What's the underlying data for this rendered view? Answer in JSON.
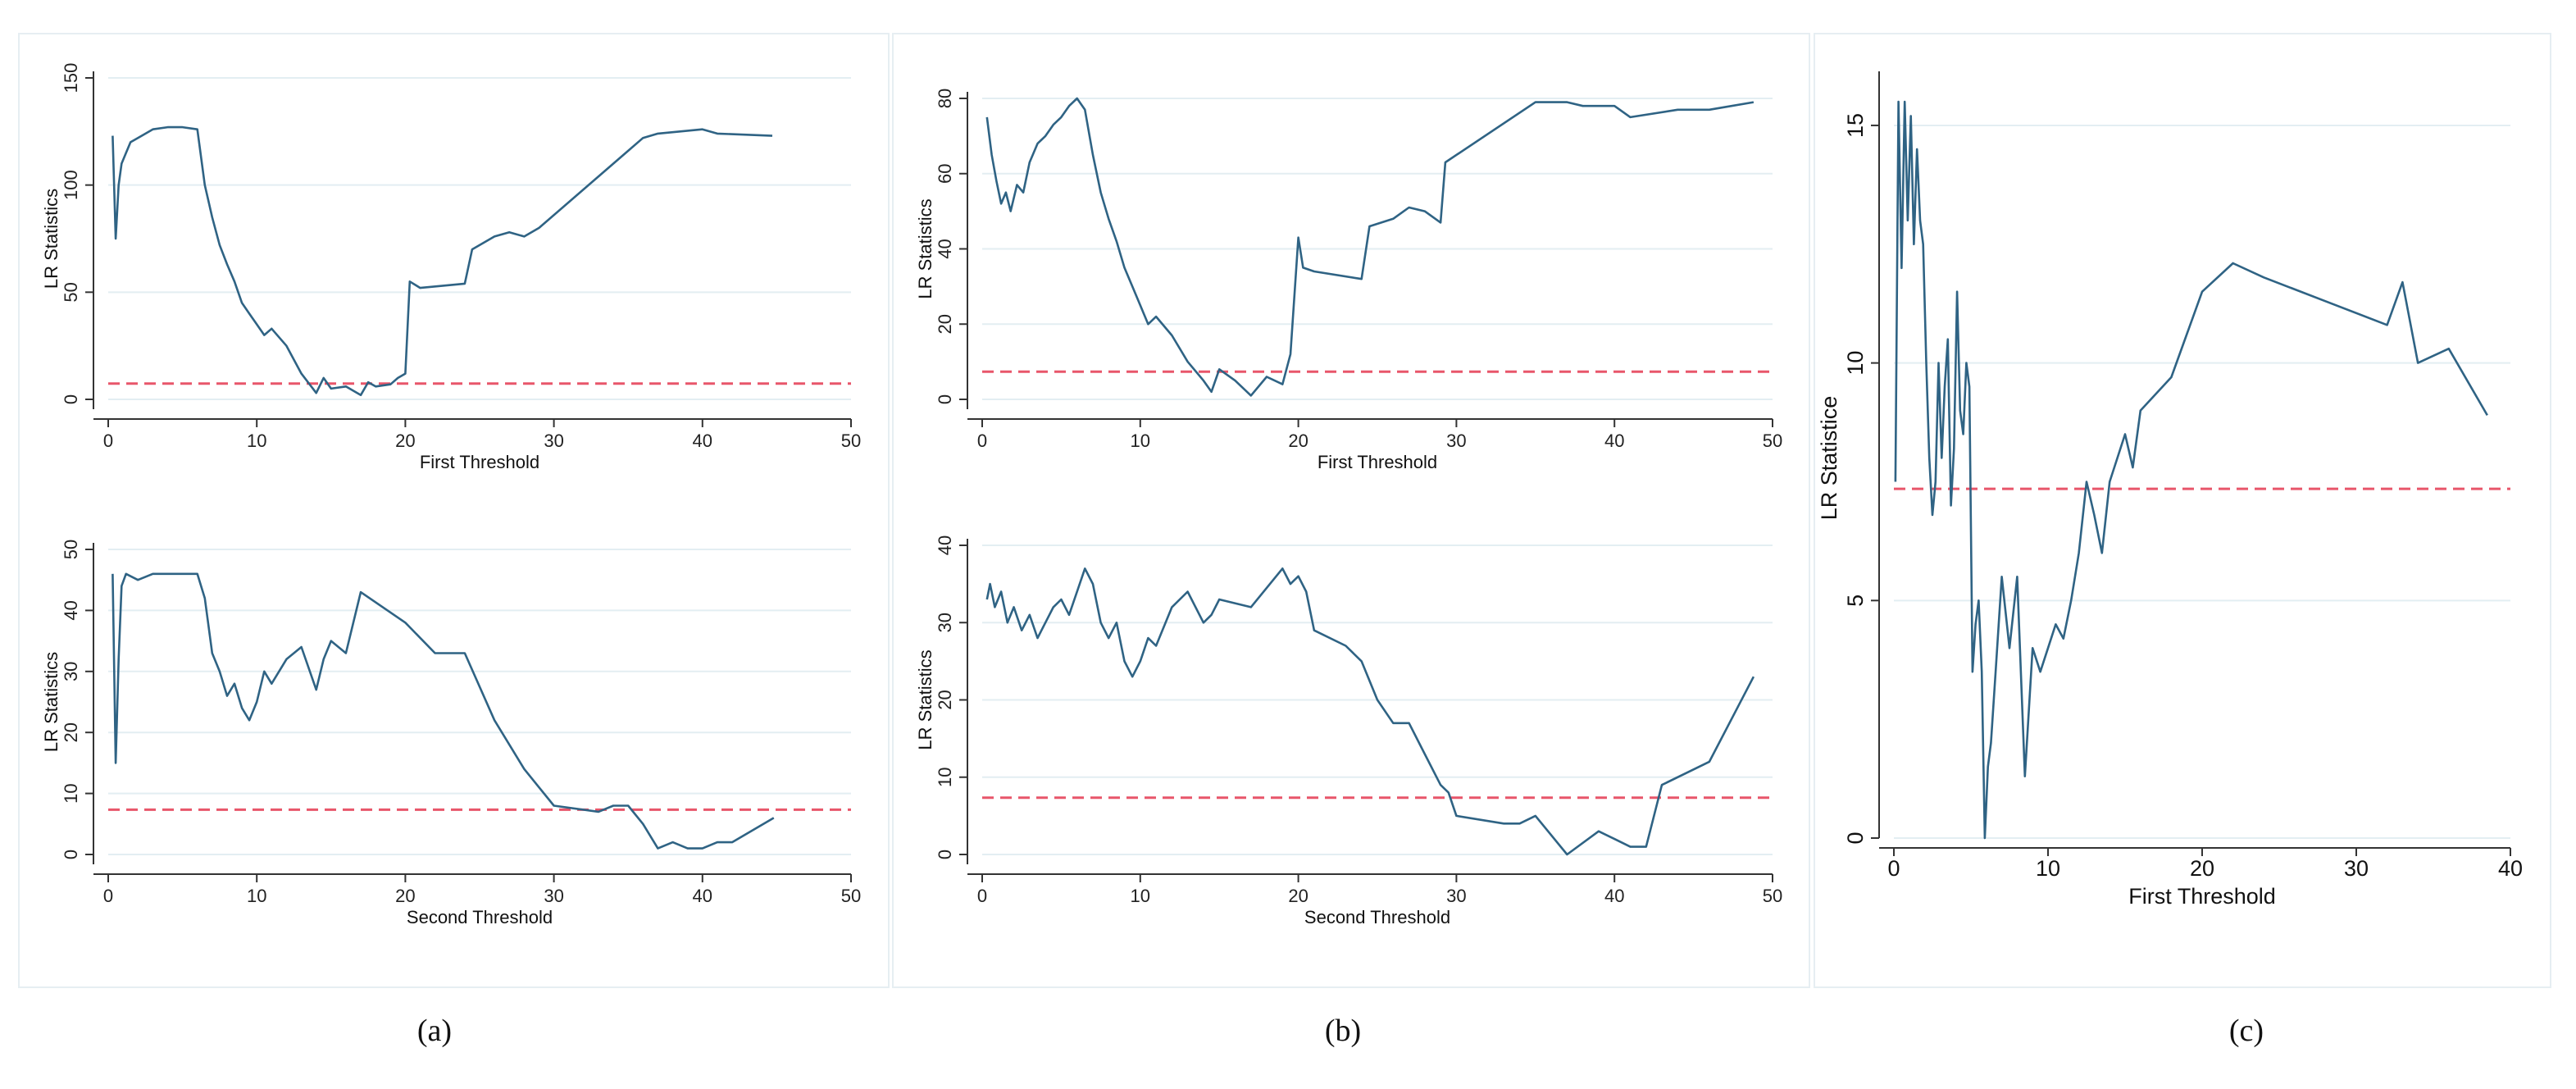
{
  "colors": {
    "line": "#2f6384",
    "refline": "#e8566a",
    "grid": "#e3eef2",
    "axis": "#333333"
  },
  "captions": [
    "(a)",
    "(b)",
    "(c)"
  ],
  "chart_data": [
    {
      "id": "a-top",
      "type": "line",
      "title": "",
      "xlabel": "First Threshold",
      "ylabel": "LR Statistics",
      "xlim": [
        0,
        50
      ],
      "ylim": [
        0,
        150
      ],
      "xticks": [
        0,
        10,
        20,
        30,
        40,
        50
      ],
      "yticks": [
        0,
        50,
        100,
        150
      ],
      "reference_line": 7.35,
      "x": [
        0.3,
        0.5,
        0.7,
        0.9,
        1.2,
        1.5,
        2,
        3,
        4,
        5,
        6,
        6.5,
        7,
        7.5,
        8,
        8.5,
        9,
        9.5,
        10,
        10.5,
        11,
        12,
        13,
        14,
        14.5,
        15,
        16,
        17,
        17.5,
        18,
        19,
        19.5,
        20,
        20.3,
        21,
        24,
        24.5,
        26,
        27,
        28,
        29,
        36,
        37,
        40,
        41,
        44.7
      ],
      "y": [
        123,
        75,
        100,
        110,
        115,
        120,
        122,
        126,
        127,
        127,
        126,
        100,
        85,
        72,
        63,
        55,
        45,
        40,
        35,
        30,
        33,
        25,
        12,
        3,
        10,
        5,
        6,
        2,
        8,
        6,
        7,
        10,
        12,
        55,
        52,
        54,
        70,
        76,
        78,
        76,
        80,
        122,
        124,
        126,
        124,
        123
      ]
    },
    {
      "id": "a-bottom",
      "type": "line",
      "title": "",
      "xlabel": "Second Threshold",
      "ylabel": "LR Statistics",
      "xlim": [
        0,
        50
      ],
      "ylim": [
        0,
        50
      ],
      "xticks": [
        0,
        10,
        20,
        30,
        40,
        50
      ],
      "yticks": [
        0,
        10,
        20,
        30,
        40,
        50
      ],
      "reference_line": 7.35,
      "x": [
        0.3,
        0.5,
        0.7,
        0.9,
        1.2,
        2,
        3,
        4,
        5,
        6,
        6.5,
        7,
        7.5,
        8,
        8.5,
        9,
        9.5,
        10,
        10.5,
        11,
        12,
        13,
        14,
        14.5,
        15,
        16,
        17,
        20,
        22,
        24,
        26,
        28,
        29,
        30,
        33,
        34,
        35,
        36,
        37,
        38,
        39,
        40,
        41,
        42,
        44.8
      ],
      "y": [
        46,
        15,
        32,
        44,
        46,
        45,
        46,
        46,
        46,
        46,
        42,
        33,
        30,
        26,
        28,
        24,
        22,
        25,
        30,
        28,
        32,
        34,
        27,
        32,
        35,
        33,
        43,
        38,
        33,
        33,
        22,
        14,
        11,
        8,
        7,
        8,
        8,
        5,
        1,
        2,
        1,
        1,
        2,
        2,
        6
      ]
    },
    {
      "id": "b-top",
      "type": "line",
      "title": "",
      "xlabel": "First Threshold",
      "ylabel": "LR Statistics",
      "xlim": [
        0,
        50
      ],
      "ylim": [
        0,
        80
      ],
      "xticks": [
        0,
        10,
        20,
        30,
        40,
        50
      ],
      "yticks": [
        0,
        20,
        40,
        60,
        80
      ],
      "reference_line": 7.35,
      "x": [
        0.3,
        0.6,
        0.9,
        1.2,
        1.5,
        1.8,
        2.2,
        2.6,
        3,
        3.5,
        4,
        4.5,
        5,
        5.5,
        6,
        6.5,
        7,
        7.5,
        8,
        8.5,
        9,
        9.5,
        10,
        10.5,
        11,
        12,
        13,
        14,
        14.5,
        15,
        16,
        16.5,
        17,
        18,
        19,
        19.5,
        20,
        20.3,
        21,
        24,
        24.5,
        26,
        27,
        28,
        29,
        29.3,
        35,
        37,
        38,
        40,
        41,
        44,
        46,
        48.8
      ],
      "y": [
        75,
        65,
        58,
        52,
        55,
        50,
        57,
        55,
        63,
        68,
        70,
        73,
        75,
        78,
        80,
        77,
        65,
        55,
        48,
        42,
        35,
        30,
        25,
        20,
        22,
        17,
        10,
        5,
        2,
        8,
        5,
        3,
        1,
        6,
        4,
        12,
        43,
        35,
        34,
        32,
        46,
        48,
        51,
        50,
        47,
        63,
        79,
        79,
        78,
        78,
        75,
        77,
        77,
        79
      ]
    },
    {
      "id": "b-bottom",
      "type": "line",
      "title": "",
      "xlabel": "Second Threshold",
      "ylabel": "LR Statistics",
      "xlim": [
        0,
        50
      ],
      "ylim": [
        0,
        40
      ],
      "xticks": [
        0,
        10,
        20,
        30,
        40,
        50
      ],
      "yticks": [
        0,
        10,
        20,
        30,
        40
      ],
      "reference_line": 7.35,
      "x": [
        0.3,
        0.5,
        0.8,
        1.2,
        1.6,
        2,
        2.5,
        3,
        3.5,
        4,
        4.5,
        5,
        5.5,
        6,
        6.5,
        7,
        7.5,
        8,
        8.5,
        9,
        9.5,
        10,
        10.5,
        11,
        12,
        13,
        14,
        14.5,
        15,
        17,
        19,
        19.5,
        20,
        20.5,
        21,
        23,
        24,
        25,
        26,
        27,
        28,
        29,
        29.5,
        30,
        33,
        34,
        35,
        37,
        39,
        40,
        41,
        42,
        43,
        46,
        48.8
      ],
      "y": [
        33,
        35,
        32,
        34,
        30,
        32,
        29,
        31,
        28,
        30,
        32,
        33,
        31,
        34,
        37,
        35,
        30,
        28,
        30,
        25,
        23,
        25,
        28,
        27,
        32,
        34,
        30,
        31,
        33,
        32,
        37,
        35,
        36,
        34,
        29,
        27,
        25,
        20,
        17,
        17,
        13,
        9,
        8,
        5,
        4,
        4,
        5,
        0,
        3,
        2,
        1,
        1,
        9,
        12,
        23
      ]
    },
    {
      "id": "c",
      "type": "line",
      "title": "",
      "xlabel": "First Threshold",
      "ylabel": "LR Statistice",
      "xlim": [
        0,
        40
      ],
      "ylim": [
        0,
        16
      ],
      "xticks": [
        0,
        10,
        20,
        30,
        40
      ],
      "yticks": [
        0,
        5,
        10,
        15
      ],
      "reference_line": 7.35,
      "x": [
        0.1,
        0.3,
        0.5,
        0.7,
        0.9,
        1.1,
        1.3,
        1.5,
        1.7,
        1.9,
        2.1,
        2.3,
        2.5,
        2.7,
        2.9,
        3.1,
        3.3,
        3.5,
        3.7,
        3.9,
        4.1,
        4.3,
        4.5,
        4.7,
        4.9,
        5.1,
        5.3,
        5.5,
        5.7,
        5.9,
        6.1,
        6.3,
        6.6,
        7,
        7.5,
        8,
        8.5,
        9,
        9.5,
        10,
        10.5,
        11,
        11.5,
        12,
        12.5,
        13,
        13.5,
        14,
        14.5,
        15,
        15.5,
        16,
        18,
        20,
        22,
        24,
        28,
        32,
        33,
        34,
        36,
        38.5
      ],
      "y": [
        7.5,
        15.5,
        12,
        15.5,
        13,
        15.2,
        12.5,
        14.5,
        13,
        12.5,
        10,
        8,
        6.8,
        7.5,
        10,
        8,
        9.5,
        10.5,
        7,
        8.2,
        11.5,
        9,
        8.5,
        10,
        9.5,
        3.5,
        4.5,
        5,
        3.5,
        0,
        1.5,
        2,
        3.5,
        5.5,
        4,
        5.5,
        1.3,
        4,
        3.5,
        4,
        4.5,
        4.2,
        5,
        6,
        7.5,
        6.8,
        6,
        7.5,
        8,
        8.5,
        7.8,
        9,
        9.7,
        11.5,
        12.1,
        11.8,
        11.3,
        10.8,
        11.7,
        10,
        10.3,
        8.9
      ]
    }
  ]
}
